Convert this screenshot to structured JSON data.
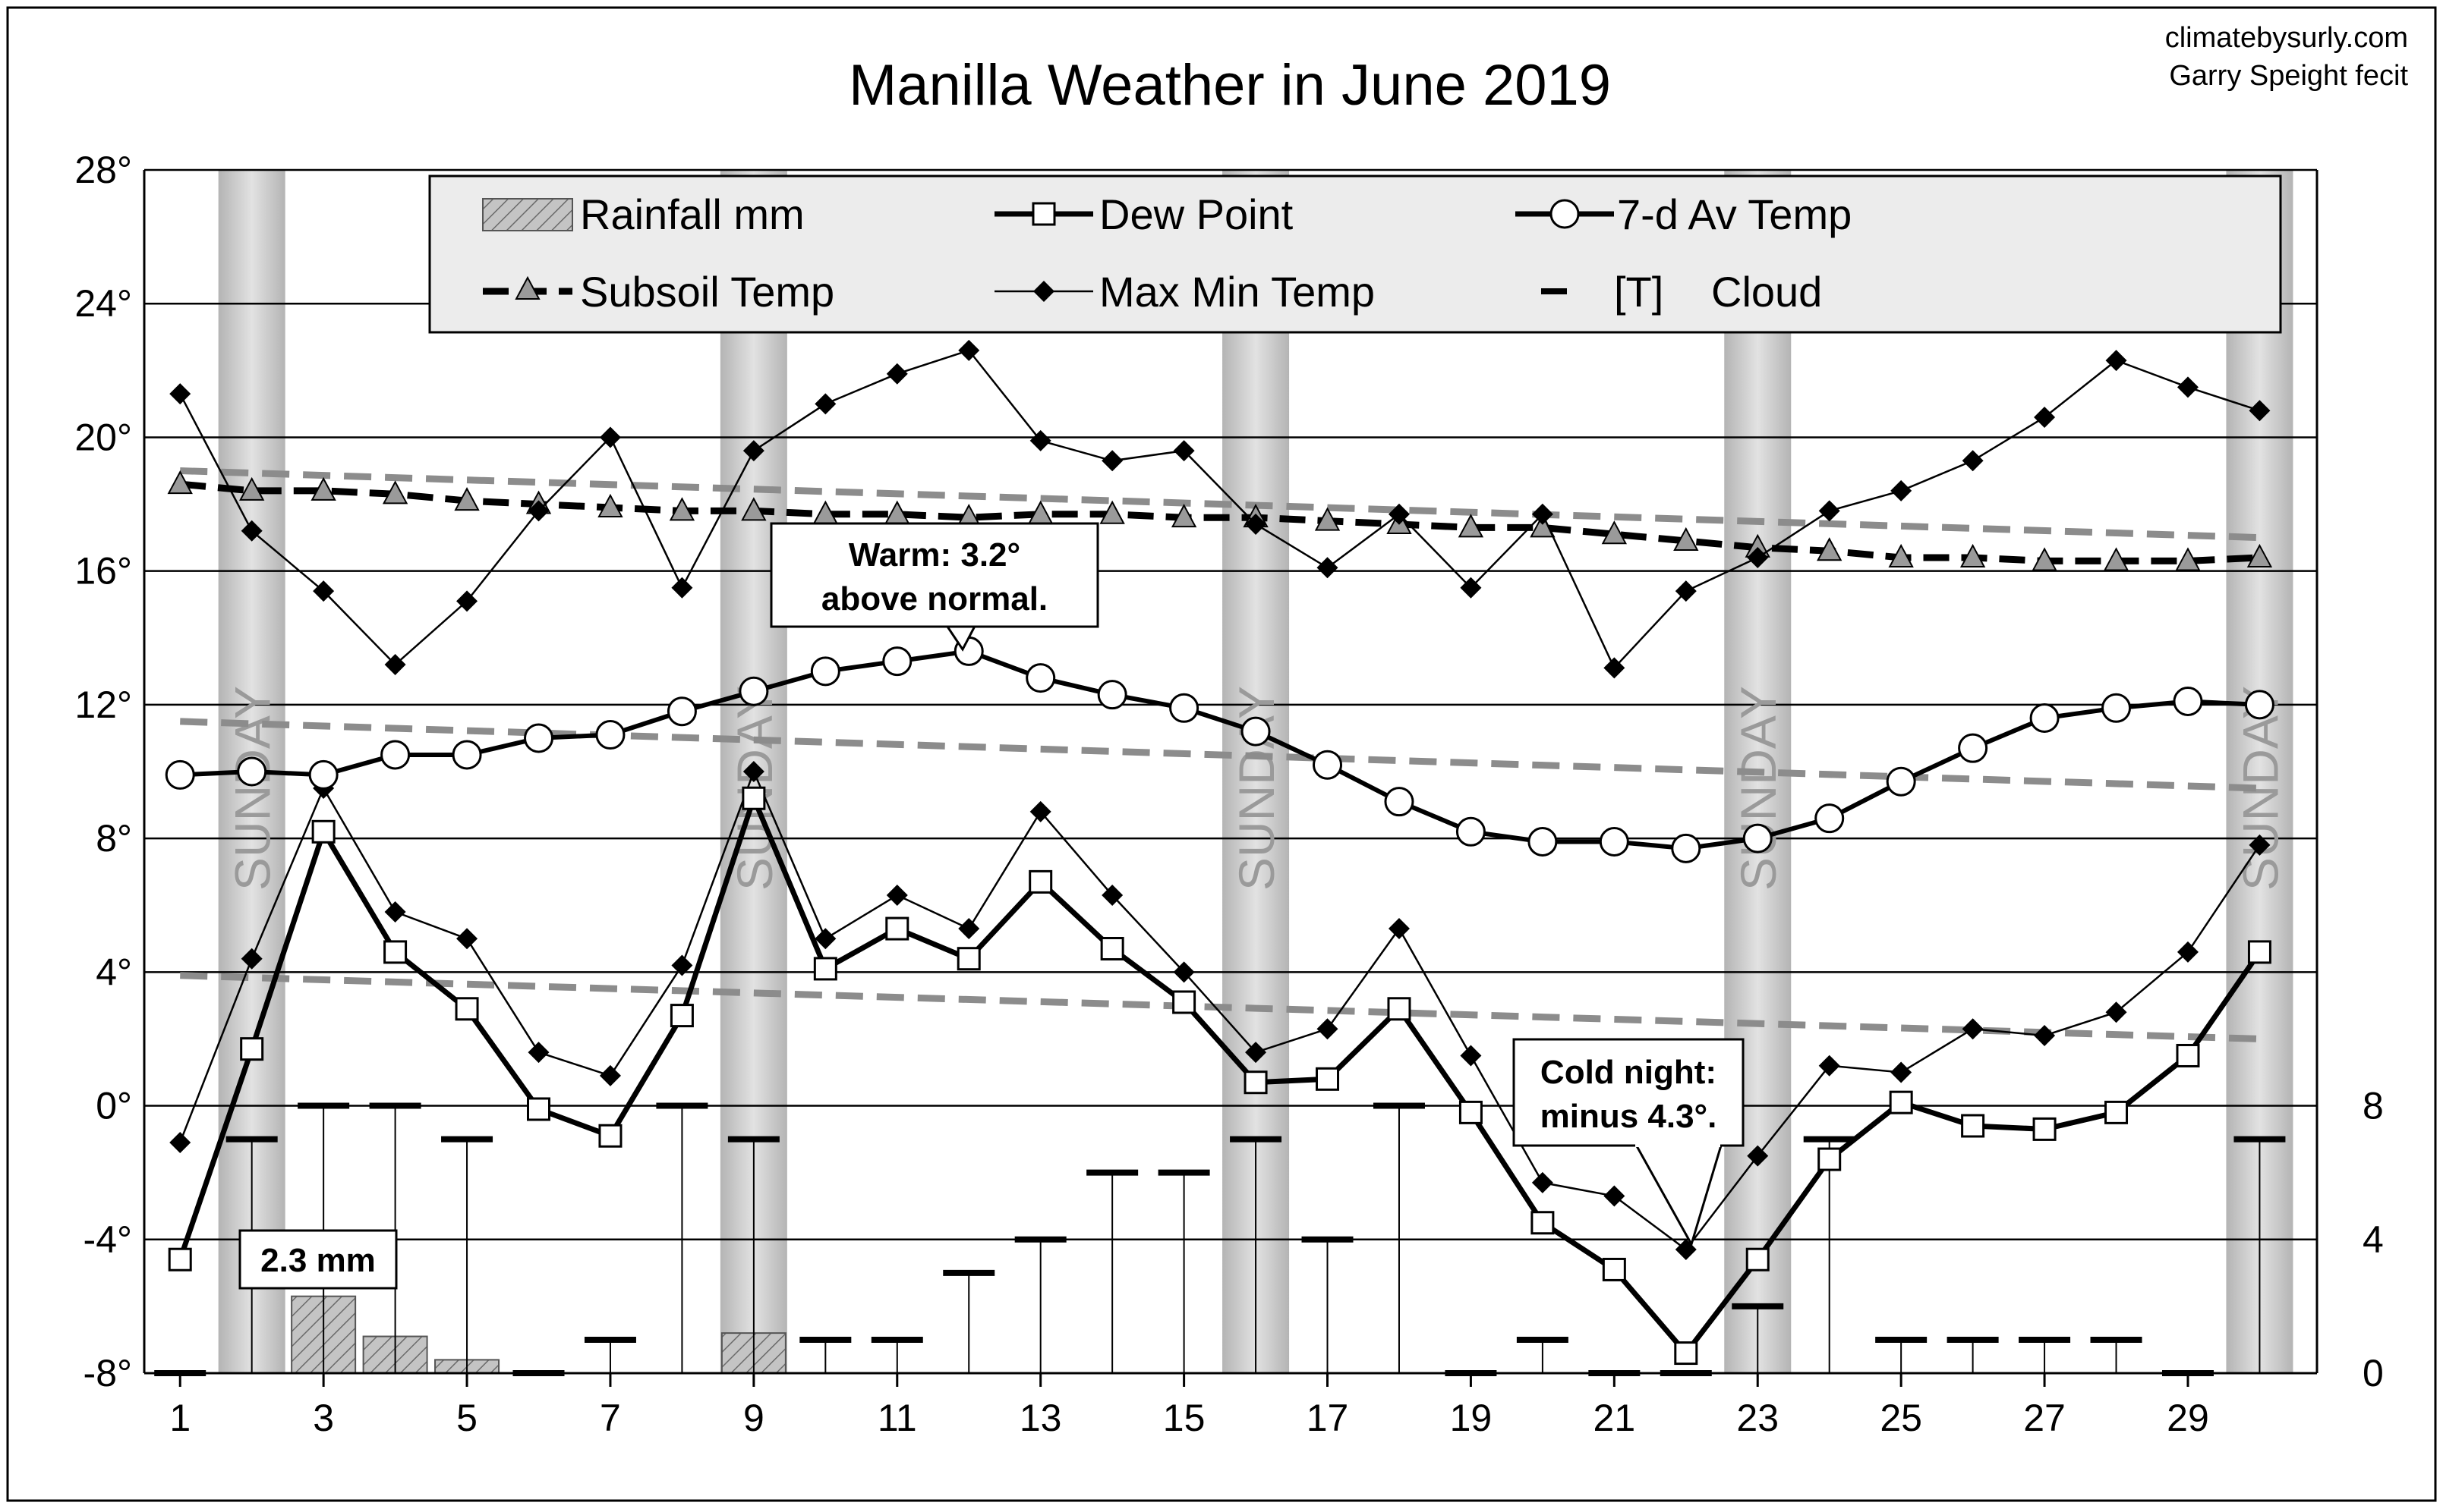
{
  "header": {
    "title": "Manilla Weather in June 2019",
    "credit_line1": "climatebysurly.com",
    "credit_line2": "Garry  Speight  fecit"
  },
  "legend": {
    "rainfall": "Rainfall mm",
    "dew_point": "Dew Point",
    "avg_temp": "7-d Av Temp",
    "subsoil": "Subsoil Temp",
    "maxmin": "Max Min Temp",
    "cloud_marker": "[T]",
    "cloud": "Cloud"
  },
  "annotations": {
    "warm_line1": "Warm: 3.2°",
    "warm_line2": "above normal.",
    "cold_line1": "Cold night:",
    "cold_line2": "minus 4.3°.",
    "rain_label": "2.3 mm",
    "sunday": "SUNDAY"
  },
  "colors": {
    "background": "#ffffff",
    "gridline": "#000000",
    "normal_dashed": "#8c8c8c",
    "sunday_band": "#c8c8c8",
    "rain_bar": "#bdbdbd",
    "legend_bg": "#ececec"
  },
  "chart_data": {
    "type": "line",
    "title": "Manilla Weather in June 2019",
    "x_ticks": [
      1,
      3,
      5,
      7,
      9,
      11,
      13,
      15,
      17,
      19,
      21,
      23,
      25,
      27,
      29
    ],
    "x_range": [
      0.5,
      30.8
    ],
    "y_left_ticks": [
      "28°",
      "24°",
      "20°",
      "16°",
      "12°",
      "8°",
      "4°",
      "0°",
      "-4°",
      "-8°"
    ],
    "y_left_range": [
      -8,
      28
    ],
    "y_right_ticks": [
      "8",
      "4",
      "0"
    ],
    "y_right_range": [
      0,
      8
    ],
    "grid": true,
    "legend_position": "top",
    "sundays": [
      2,
      9,
      16,
      23,
      30
    ],
    "days": [
      1,
      2,
      3,
      4,
      5,
      6,
      7,
      8,
      9,
      10,
      11,
      12,
      13,
      14,
      15,
      16,
      17,
      18,
      19,
      20,
      21,
      22,
      23,
      24,
      25,
      26,
      27,
      28,
      29,
      30
    ],
    "max_temp": [
      21.3,
      17.2,
      15.4,
      13.2,
      15.1,
      17.8,
      20.0,
      15.5,
      19.6,
      21.0,
      21.9,
      22.6,
      19.9,
      19.3,
      19.6,
      17.4,
      16.1,
      17.7,
      15.5,
      17.7,
      13.1,
      15.4,
      16.4,
      17.8,
      18.4,
      19.3,
      20.6,
      22.3,
      21.5,
      20.8
    ],
    "min_temp": [
      -1.1,
      4.4,
      9.5,
      5.8,
      5.0,
      1.6,
      0.9,
      4.2,
      10.0,
      5.0,
      6.3,
      5.3,
      8.8,
      6.3,
      4.0,
      1.6,
      2.3,
      5.3,
      1.5,
      -2.3,
      -2.7,
      -4.3,
      -1.5,
      1.2,
      1.0,
      2.3,
      2.1,
      2.8,
      4.6,
      7.8
    ],
    "dew_point": [
      -4.6,
      1.7,
      8.2,
      4.6,
      2.9,
      -0.1,
      -0.9,
      2.7,
      9.2,
      4.1,
      5.3,
      4.4,
      6.7,
      4.7,
      3.1,
      0.7,
      0.8,
      2.9,
      -0.2,
      -3.5,
      -4.9,
      -7.4,
      -4.6,
      -1.6,
      0.1,
      -0.6,
      -0.7,
      -0.2,
      1.5,
      4.6
    ],
    "avg_temp_7d": [
      9.9,
      10.0,
      9.9,
      10.5,
      10.5,
      11.0,
      11.1,
      11.8,
      12.4,
      13.0,
      13.3,
      13.6,
      12.8,
      12.3,
      11.9,
      11.2,
      10.2,
      9.1,
      8.2,
      7.9,
      7.9,
      7.7,
      8.0,
      8.6,
      9.7,
      10.7,
      11.6,
      11.9,
      12.1,
      12.0
    ],
    "subsoil_temp": [
      18.6,
      18.4,
      18.4,
      18.3,
      18.1,
      18.0,
      17.9,
      17.8,
      17.8,
      17.7,
      17.7,
      17.6,
      17.7,
      17.7,
      17.6,
      17.6,
      17.5,
      17.4,
      17.3,
      17.3,
      17.1,
      16.9,
      16.7,
      16.6,
      16.4,
      16.4,
      16.3,
      16.3,
      16.3,
      16.4
    ],
    "normal_subsoil": [
      19.0,
      17.0
    ],
    "normal_avg_temp": [
      11.5,
      9.5
    ],
    "normal_min_temp": [
      3.9,
      2.0
    ],
    "rainfall_mm": [
      0,
      0,
      2.3,
      1.1,
      0.4,
      0,
      0,
      0,
      1.2,
      0,
      0,
      0,
      0,
      0,
      0,
      0,
      0,
      0,
      0,
      0,
      0,
      0,
      0,
      0,
      0,
      0,
      0,
      0,
      0,
      0
    ],
    "cloud_oktas": [
      0,
      7,
      8,
      8,
      7,
      0,
      1,
      8,
      7,
      1,
      1,
      3,
      4,
      6,
      6,
      7,
      4,
      8,
      0,
      1,
      0,
      0,
      2,
      7,
      1,
      1,
      1,
      1,
      0,
      7
    ]
  }
}
